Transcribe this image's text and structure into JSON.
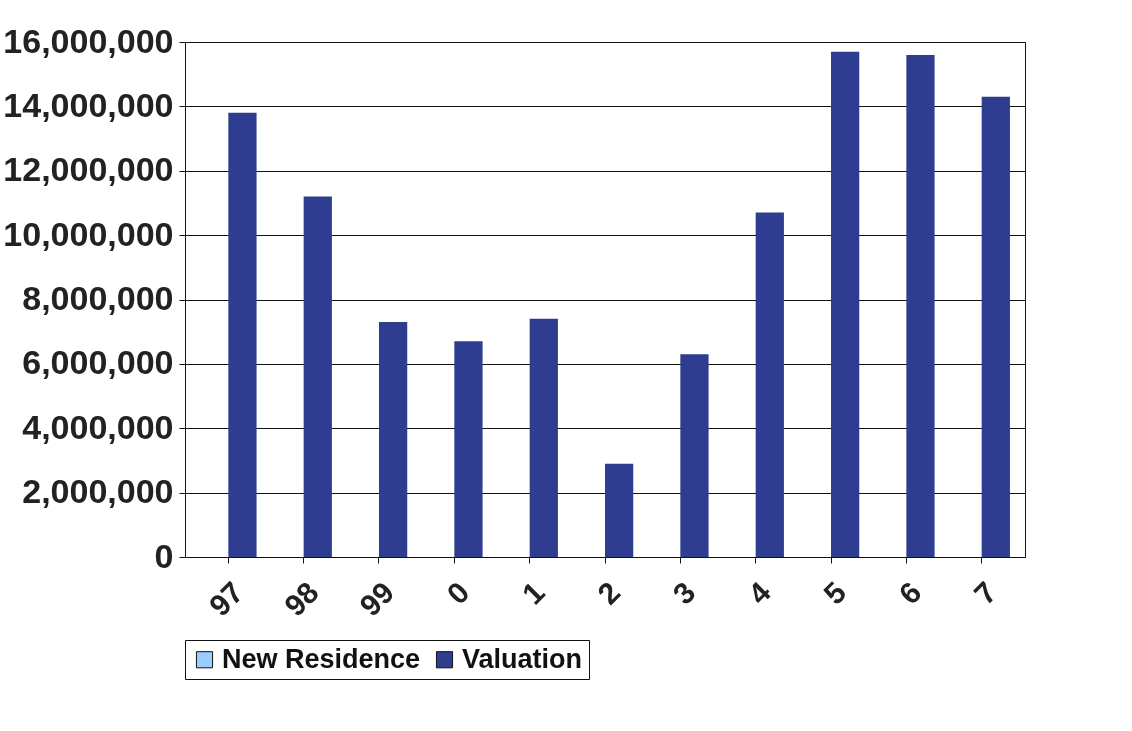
{
  "chart_data": {
    "type": "bar",
    "categories": [
      "97",
      "98",
      "99",
      "0",
      "1",
      "2",
      "3",
      "4",
      "5",
      "6",
      "7"
    ],
    "series": [
      {
        "name": "New Residence",
        "color": "#99ccff",
        "values": [
          0,
          0,
          0,
          0,
          0,
          0,
          0,
          0,
          0,
          0,
          0
        ]
      },
      {
        "name": "Valuation",
        "color": "#2e3d8f",
        "values": [
          13800000,
          11200000,
          7300000,
          6700000,
          7400000,
          2900000,
          6300000,
          10700000,
          15700000,
          15600000,
          14300000
        ]
      }
    ],
    "ylim": [
      0,
      16000000
    ],
    "yticks": [
      0,
      {
        "value": 2000000,
        "label": "2,000,000"
      },
      {
        "value": 4000000,
        "label": "4,000,000"
      },
      {
        "value": 6000000,
        "label": "6,000,000"
      },
      {
        "value": 8000000,
        "label": "8,000,000"
      },
      {
        "value": 10000000,
        "label": "10,000,000"
      },
      {
        "value": 12000000,
        "label": "12,000,000"
      },
      {
        "value": 14000000,
        "label": "14,000,000"
      },
      {
        "value": 16000000,
        "label": "16,000,000"
      }
    ],
    "grid": "y",
    "legend": "bottom"
  }
}
